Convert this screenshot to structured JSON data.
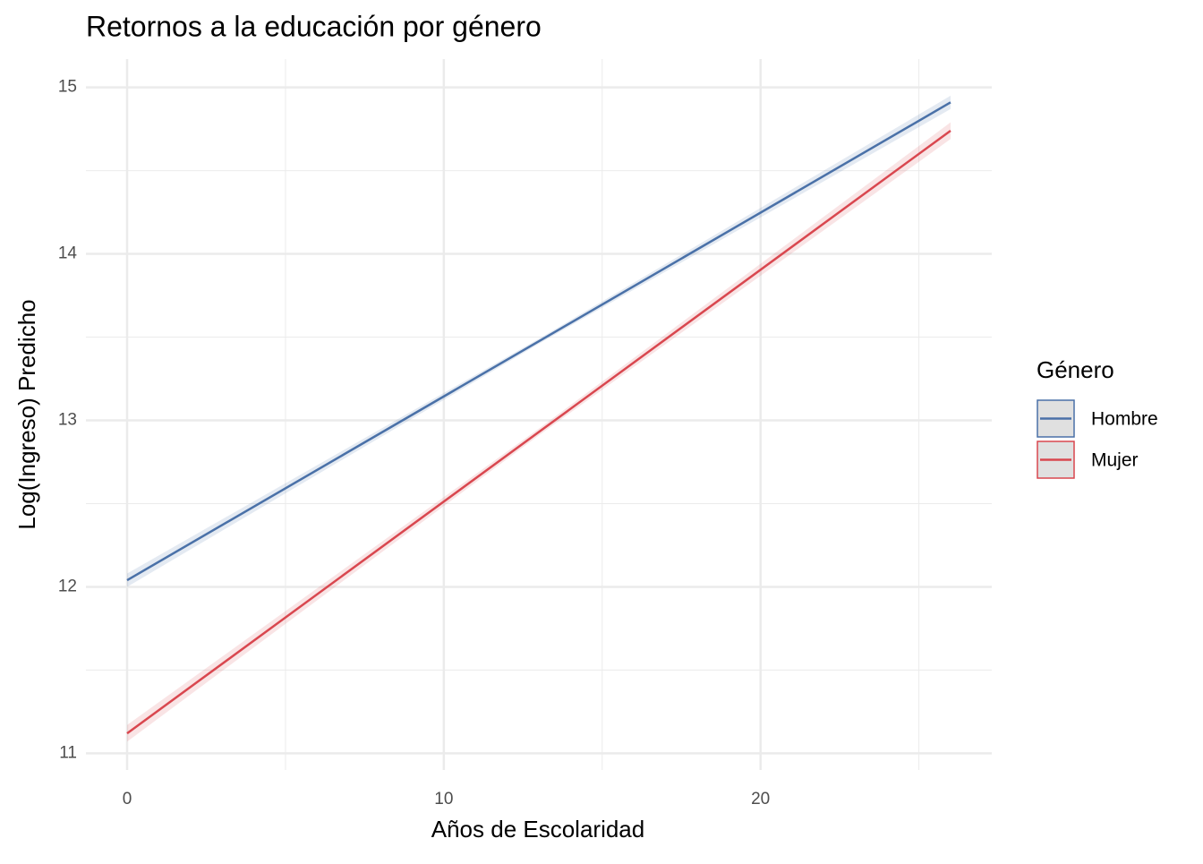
{
  "chart_data": {
    "type": "line",
    "title": "Retornos a la educación por género",
    "x_label": "Años de Escolaridad",
    "y_label": "Log(Ingreso) Predicho",
    "legend_title": "Género",
    "legend": "right",
    "x": [
      0,
      13,
      26
    ],
    "series": [
      {
        "name": "Hombre",
        "color": "#4a71a8",
        "values": [
          12.04,
          13.475,
          14.91
        ],
        "lower": [
          12.0,
          13.46,
          14.87
        ],
        "upper": [
          12.08,
          13.49,
          14.95
        ]
      },
      {
        "name": "Mujer",
        "color": "#d9474f",
        "values": [
          11.12,
          12.93,
          14.74
        ],
        "lower": [
          11.07,
          12.91,
          14.69
        ],
        "upper": [
          11.17,
          12.95,
          14.79
        ]
      }
    ],
    "xlim": [
      -1.3,
      27.3
    ],
    "xticks": [
      0,
      10,
      20
    ],
    "xminor": [
      5,
      15,
      25
    ],
    "ylim": [
      10.9,
      15.17
    ],
    "yticks": [
      11,
      12,
      13,
      14,
      15
    ],
    "yminor": [
      11.5,
      12.5,
      13.5,
      14.5
    ],
    "grid": true
  }
}
